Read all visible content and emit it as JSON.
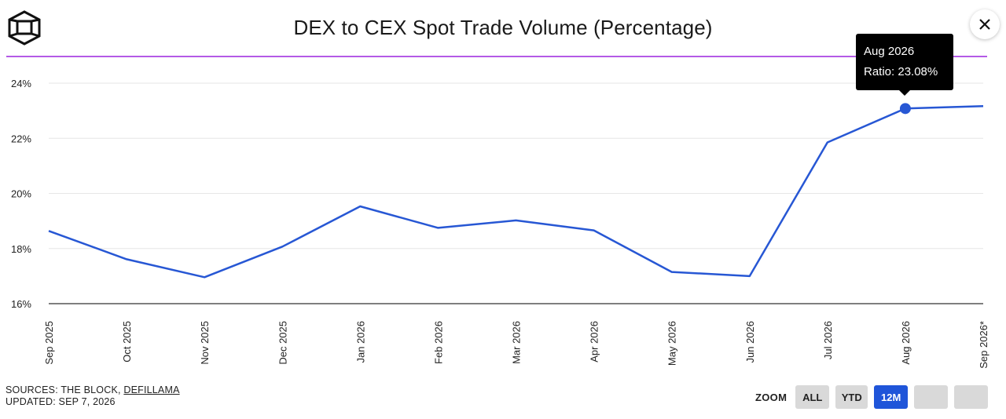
{
  "header": {
    "title": "DEX to CEX Spot Trade Volume (Percentage)"
  },
  "colors": {
    "line": "#2757d4",
    "accent_divider": "#b45ae6",
    "zoom_active": "#1f55d9"
  },
  "chart_data": {
    "type": "line",
    "title": "DEX to CEX Spot Trade Volume (Percentage)",
    "categories": [
      "Sep 2025",
      "Oct 2025",
      "Nov 2025",
      "Dec 2025",
      "Jan 2026",
      "Feb 2026",
      "Mar 2026",
      "Apr 2026",
      "May 2026",
      "Jun 2026",
      "Jul 2026",
      "Aug 2026",
      "Sep 2026*"
    ],
    "series": [
      {
        "name": "Ratio",
        "values": [
          18.64,
          17.61,
          16.96,
          18.07,
          19.53,
          18.75,
          19.02,
          18.66,
          17.15,
          17.0,
          21.85,
          23.08,
          23.17
        ]
      }
    ],
    "ylim": [
      16,
      24
    ],
    "yticks": [
      "16%",
      "18%",
      "20%",
      "22%",
      "24%"
    ],
    "grid": true,
    "legend": "none"
  },
  "tooltip": {
    "line1": "Aug 2026",
    "line2": "Ratio: 23.08%",
    "index": 11
  },
  "footer": {
    "sources_prefix": "SOURCES: THE BLOCK, ",
    "sources_link": "DEFILLAMA",
    "updated": "UPDATED: SEP 7, 2026"
  },
  "zoom": {
    "label": "ZOOM",
    "options": [
      "ALL",
      "YTD",
      "12M",
      "",
      ""
    ],
    "active": "12M"
  },
  "icons": {
    "logo": "the-block-cube-logo",
    "close": "close-icon"
  }
}
